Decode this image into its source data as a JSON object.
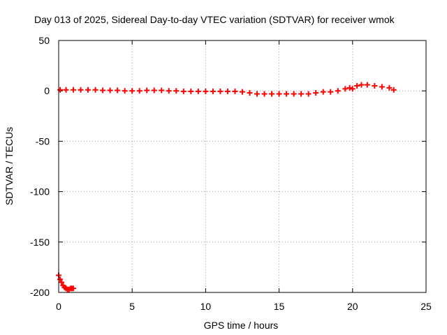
{
  "chart_data": {
    "type": "scatter",
    "title": "Day 013 of 2025, Sidereal Day-to-day VTEC variation (SDTVAR) for receiver wmok",
    "xlabel": "GPS time / hours",
    "ylabel": "SDTVAR / TECUs",
    "xlim": [
      0,
      25
    ],
    "ylim": [
      -200,
      50
    ],
    "xticks": [
      0,
      5,
      10,
      15,
      20,
      25
    ],
    "xtick_labels": [
      "0",
      "5",
      "10",
      "15",
      "20",
      "25"
    ],
    "yticks": [
      50,
      0,
      -50,
      -100,
      -150,
      -200
    ],
    "ytick_labels": [
      "50",
      "0",
      "-50",
      "-100",
      "-150",
      "-200"
    ],
    "grid": true,
    "marker": "+",
    "series": [
      {
        "name": "SDTVAR",
        "color": "#ff0000",
        "x": [
          0.0,
          0.1,
          0.2,
          0.3,
          0.4,
          0.5,
          0.6,
          0.7,
          0.8,
          0.9,
          1.0,
          0.1,
          0.5,
          1.0,
          1.5,
          2.0,
          2.5,
          3.0,
          3.5,
          4.0,
          4.5,
          5.0,
          5.5,
          6.0,
          6.5,
          7.0,
          7.5,
          8.0,
          8.5,
          9.0,
          9.5,
          10.0,
          10.5,
          11.0,
          11.5,
          12.0,
          12.5,
          13.0,
          13.5,
          14.0,
          14.5,
          15.0,
          15.5,
          16.0,
          16.5,
          17.0,
          17.5,
          18.0,
          18.5,
          19.0,
          19.5,
          19.8,
          20.0,
          20.3,
          20.6,
          21.0,
          21.5,
          22.0,
          22.5,
          22.8
        ],
        "y": [
          -183,
          -187,
          -190,
          -193,
          -195,
          -196,
          -197,
          -197,
          -196,
          -196,
          -196,
          1,
          1,
          1,
          1,
          1,
          1,
          0.5,
          0.5,
          0.5,
          0,
          0,
          0,
          0.5,
          0.5,
          0.5,
          0,
          0,
          -0.5,
          -0.5,
          -0.5,
          -0.5,
          -0.5,
          -0.5,
          -0.5,
          -0.5,
          -1,
          -2,
          -3,
          -3,
          -3,
          -3,
          -3,
          -3,
          -3,
          -3,
          -2,
          -1,
          -1,
          0,
          2,
          3,
          2,
          5,
          6,
          6,
          5,
          4,
          3,
          1
        ]
      }
    ]
  }
}
